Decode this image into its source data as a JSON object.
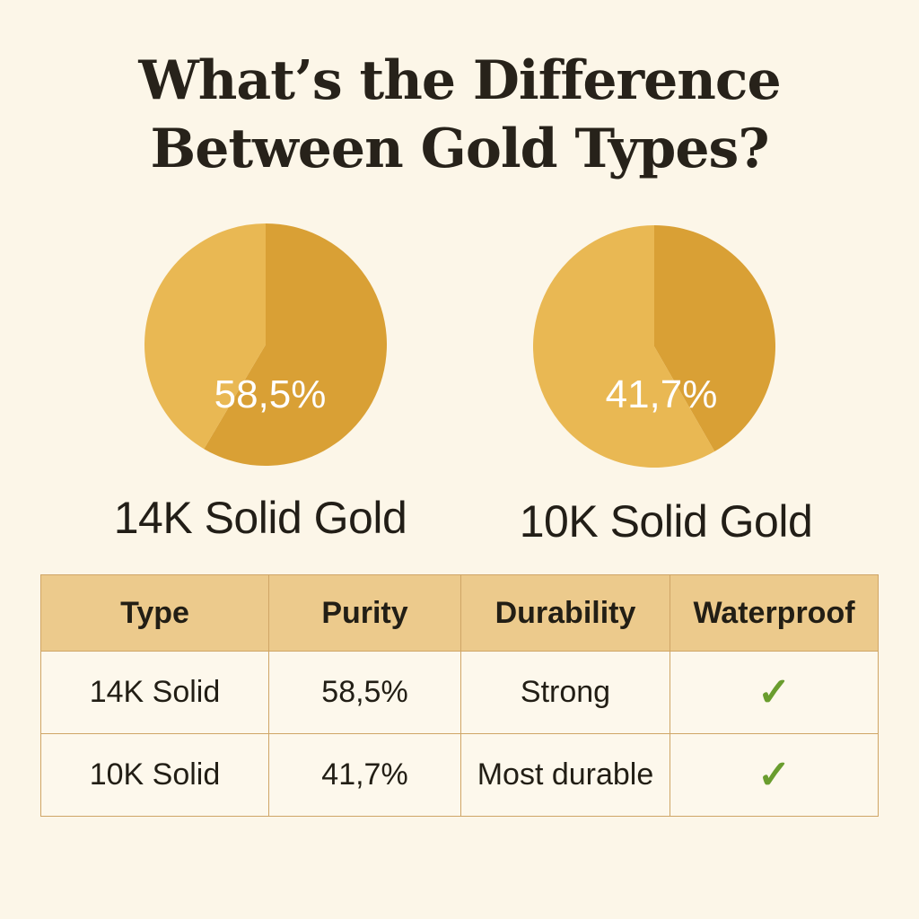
{
  "title": {
    "line1": "What’s the Difference",
    "line2": "Between Gold Types?"
  },
  "colors": {
    "background": "#fcf6e8",
    "gold_dark": "#d9a035",
    "gold_light": "#e9b853",
    "header_bg": "#ecca8c",
    "check": "#6a9d2e"
  },
  "chart_data": [
    {
      "type": "pie",
      "label": "14K Solid Gold",
      "value_label": "58,5%",
      "values": [
        58.5,
        41.5
      ]
    },
    {
      "type": "pie",
      "label": "10K Solid Gold",
      "value_label": "41,7%",
      "values": [
        41.7,
        58.3
      ]
    }
  ],
  "table": {
    "headers": [
      "Type",
      "Purity",
      "Durability",
      "Waterproof"
    ],
    "rows": [
      {
        "type": "14K Solid",
        "purity": "58,5%",
        "durability": "Strong",
        "waterproof": "✓"
      },
      {
        "type": "10K Solid",
        "purity": "41,7%",
        "durability": "Most durable",
        "waterproof": "✓"
      }
    ]
  }
}
